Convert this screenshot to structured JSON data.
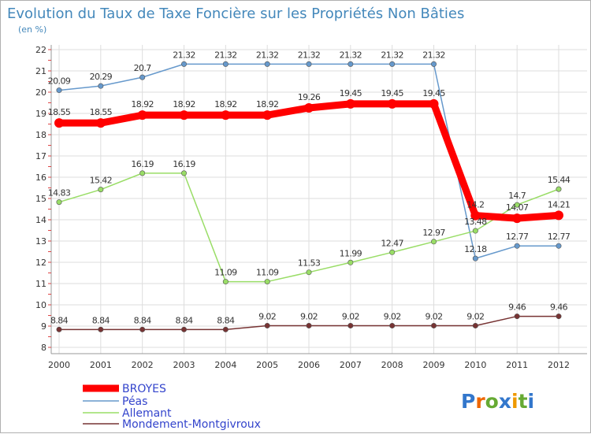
{
  "chart_data": {
    "type": "line",
    "title": "Evolution du Taux de Taxe Foncière sur les Propriétés Non Bâties",
    "subtitle": "(en %)",
    "xlabel": "",
    "ylabel": "",
    "ylim": [
      8,
      22
    ],
    "yticks": [
      8,
      9,
      10,
      11,
      12,
      13,
      14,
      15,
      16,
      17,
      18,
      19,
      20,
      21,
      22
    ],
    "categories": [
      "2000",
      "2001",
      "2002",
      "2003",
      "2004",
      "2005",
      "2006",
      "2007",
      "2008",
      "2009",
      "2010",
      "2011",
      "2012"
    ],
    "legend_position": "bottom-left",
    "series": [
      {
        "name": "BROYES",
        "color": "#ff0000",
        "emphasis": true,
        "values": [
          18.55,
          18.55,
          18.92,
          18.92,
          18.92,
          18.92,
          19.26,
          19.45,
          19.45,
          19.45,
          14.2,
          14.07,
          14.21
        ],
        "labels": [
          "18.55",
          "18.55",
          "18.92",
          "18.92",
          "18.92",
          "18.92",
          "19.26",
          "19.45",
          "19.45",
          "19.45",
          "14.2",
          "14.07",
          "14.21"
        ]
      },
      {
        "name": "Péas",
        "color": "#6699cc",
        "emphasis": false,
        "values": [
          20.09,
          20.29,
          20.7,
          21.32,
          21.32,
          21.32,
          21.32,
          21.32,
          21.32,
          21.32,
          12.18,
          12.77,
          12.77
        ],
        "labels": [
          "20.09",
          "20.29",
          "20.7",
          "21.32",
          "21.32",
          "21.32",
          "21.32",
          "21.32",
          "21.32",
          "21.32",
          "12.18",
          "12.77",
          "12.77"
        ]
      },
      {
        "name": "Allemant",
        "color": "#99dd66",
        "emphasis": false,
        "values": [
          14.83,
          15.42,
          16.19,
          16.19,
          11.09,
          11.09,
          11.53,
          11.99,
          12.47,
          12.97,
          13.48,
          14.7,
          15.44
        ],
        "labels": [
          "14.83",
          "15.42",
          "16.19",
          "16.19",
          "11.09",
          "11.09",
          "11.53",
          "11.99",
          "12.47",
          "12.97",
          "13.48",
          "14.7",
          "15.44"
        ]
      },
      {
        "name": "Mondement-Montgivroux",
        "color": "#773333",
        "emphasis": false,
        "values": [
          8.84,
          8.84,
          8.84,
          8.84,
          8.84,
          9.02,
          9.02,
          9.02,
          9.02,
          9.02,
          9.02,
          9.46,
          9.46
        ],
        "labels": [
          "8.84",
          "8.84",
          "8.84",
          "8.84",
          "8.84",
          "9.02",
          "9.02",
          "9.02",
          "9.02",
          "9.02",
          "9.02",
          "9.46",
          "9.46"
        ]
      }
    ]
  },
  "colors": {
    "title": "#4488bb",
    "legend_text": "#3344cc",
    "axis_text": "#333333",
    "grid": "#dddddd"
  },
  "logo": {
    "text": "Proxiti",
    "letters": [
      "P",
      "r",
      "o",
      "x",
      "i",
      "t",
      "i"
    ],
    "letter_colors": [
      "#3377cc",
      "#ee6600",
      "#66aa33",
      "#3377cc",
      "#ee9900",
      "#66aa33",
      "#3377cc"
    ]
  }
}
